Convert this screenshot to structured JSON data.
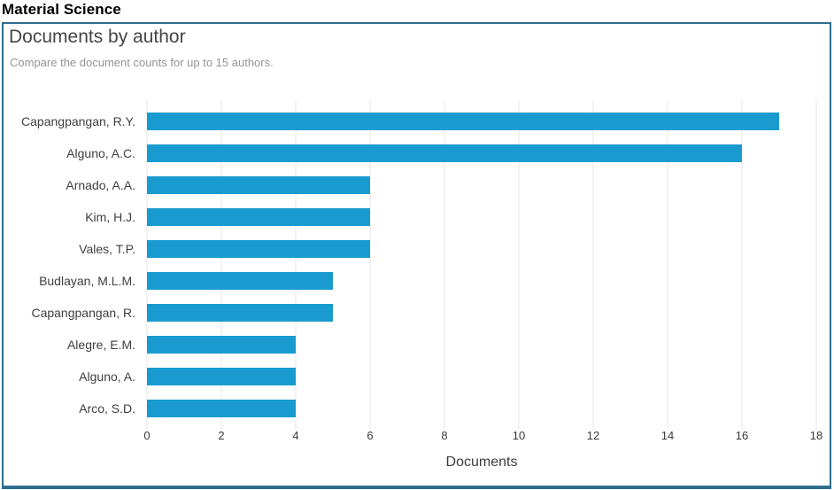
{
  "page": {
    "heading": "Material Science"
  },
  "panel": {
    "title": "Documents by author",
    "subtitle": "Compare the document counts for up to 15 authors.",
    "border_color": "#2e6d8e"
  },
  "chart_data": {
    "type": "bar",
    "orientation": "horizontal",
    "title": "Documents by author",
    "subtitle": "Compare the document counts for up to 15 authors.",
    "categories": [
      "Capangpangan, R.Y.",
      "Alguno, A.C.",
      "Arnado, A.A.",
      "Kim, H.J.",
      "Vales, T.P.",
      "Budlayan, M.L.M.",
      "Capangpangan, R.",
      "Alegre, E.M.",
      "Alguno, A.",
      "Arco, S.D."
    ],
    "values": [
      17,
      16,
      6,
      6,
      6,
      5,
      5,
      4,
      4,
      4
    ],
    "xlabel": "Documents",
    "ylabel": "",
    "xlim": [
      0,
      18
    ],
    "xticks": [
      0,
      2,
      4,
      6,
      8,
      10,
      12,
      14,
      16,
      18
    ],
    "grid": "vertical",
    "legend": "none",
    "bar_color": "#199bd0",
    "gridline_color": "#e4e4e4"
  }
}
